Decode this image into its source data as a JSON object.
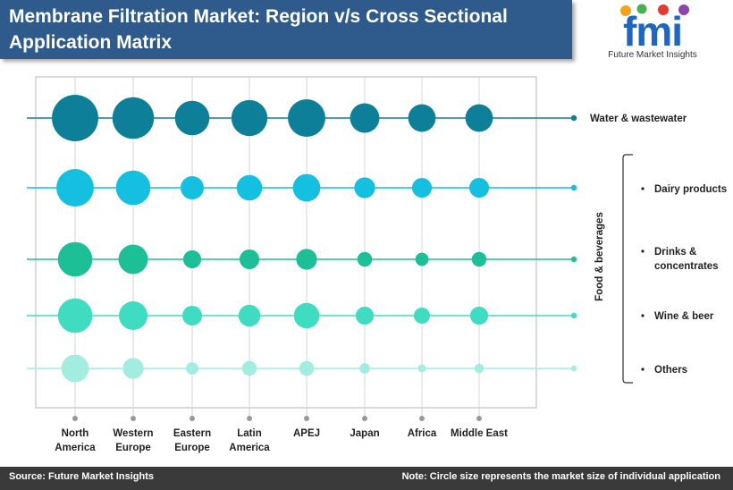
{
  "title": {
    "line1": "Membrane Filtration Market: Region v/s Cross Sectional",
    "line2": "Application Matrix"
  },
  "logo": {
    "letters": "fmi",
    "caption": "Future Market Insights"
  },
  "footer": {
    "source": "Source: Future Market Insights",
    "note": "Note: Circle size represents the market size of individual application"
  },
  "colors": {
    "banner": "#2f5b8c",
    "logo_blue": "#1f66c1",
    "footer": "#3a3a3a",
    "axis_dot": "#999999"
  },
  "chart_data": {
    "type": "bubble-matrix",
    "regions": [
      [
        "North",
        "America"
      ],
      [
        "Western",
        "Europe"
      ],
      [
        "Eastern",
        "Europe"
      ],
      [
        "Latin",
        "America"
      ],
      [
        "APEJ"
      ],
      [
        "Japan"
      ],
      [
        "Africa"
      ],
      [
        "Middle East"
      ]
    ],
    "group_label": "Food & beverages",
    "applications": [
      {
        "label": "Water & wastewater",
        "bullet": false,
        "color": "#0e7f99",
        "sizes": [
          10,
          8,
          5.5,
          6,
          6.5,
          4,
          3.5,
          3.5
        ]
      },
      {
        "label": [
          "Dairy products"
        ],
        "bullet": true,
        "color": "#14bfe0",
        "sizes": [
          6.5,
          5.5,
          2.5,
          3,
          3.5,
          2,
          1.8,
          1.8
        ]
      },
      {
        "label": [
          "Drinks &",
          "concentrates"
        ],
        "bullet": true,
        "color": "#1dbf96",
        "sizes": [
          5.5,
          4,
          1.5,
          1.8,
          2,
          1,
          0.8,
          1
        ]
      },
      {
        "label": [
          "Wine & beer"
        ],
        "bullet": true,
        "color": "#3fdcc2",
        "sizes": [
          5.5,
          3.8,
          1.8,
          2.2,
          3,
          1.5,
          1.2,
          1.5
        ]
      },
      {
        "label": [
          "Others"
        ],
        "bullet": true,
        "color": "#a3ede0",
        "sizes": [
          3.5,
          2,
          0.7,
          1,
          1,
          0.5,
          0.3,
          0.4
        ]
      }
    ],
    "grid": true,
    "legend": "right",
    "size_meaning": "relative market size (unlabeled)"
  }
}
